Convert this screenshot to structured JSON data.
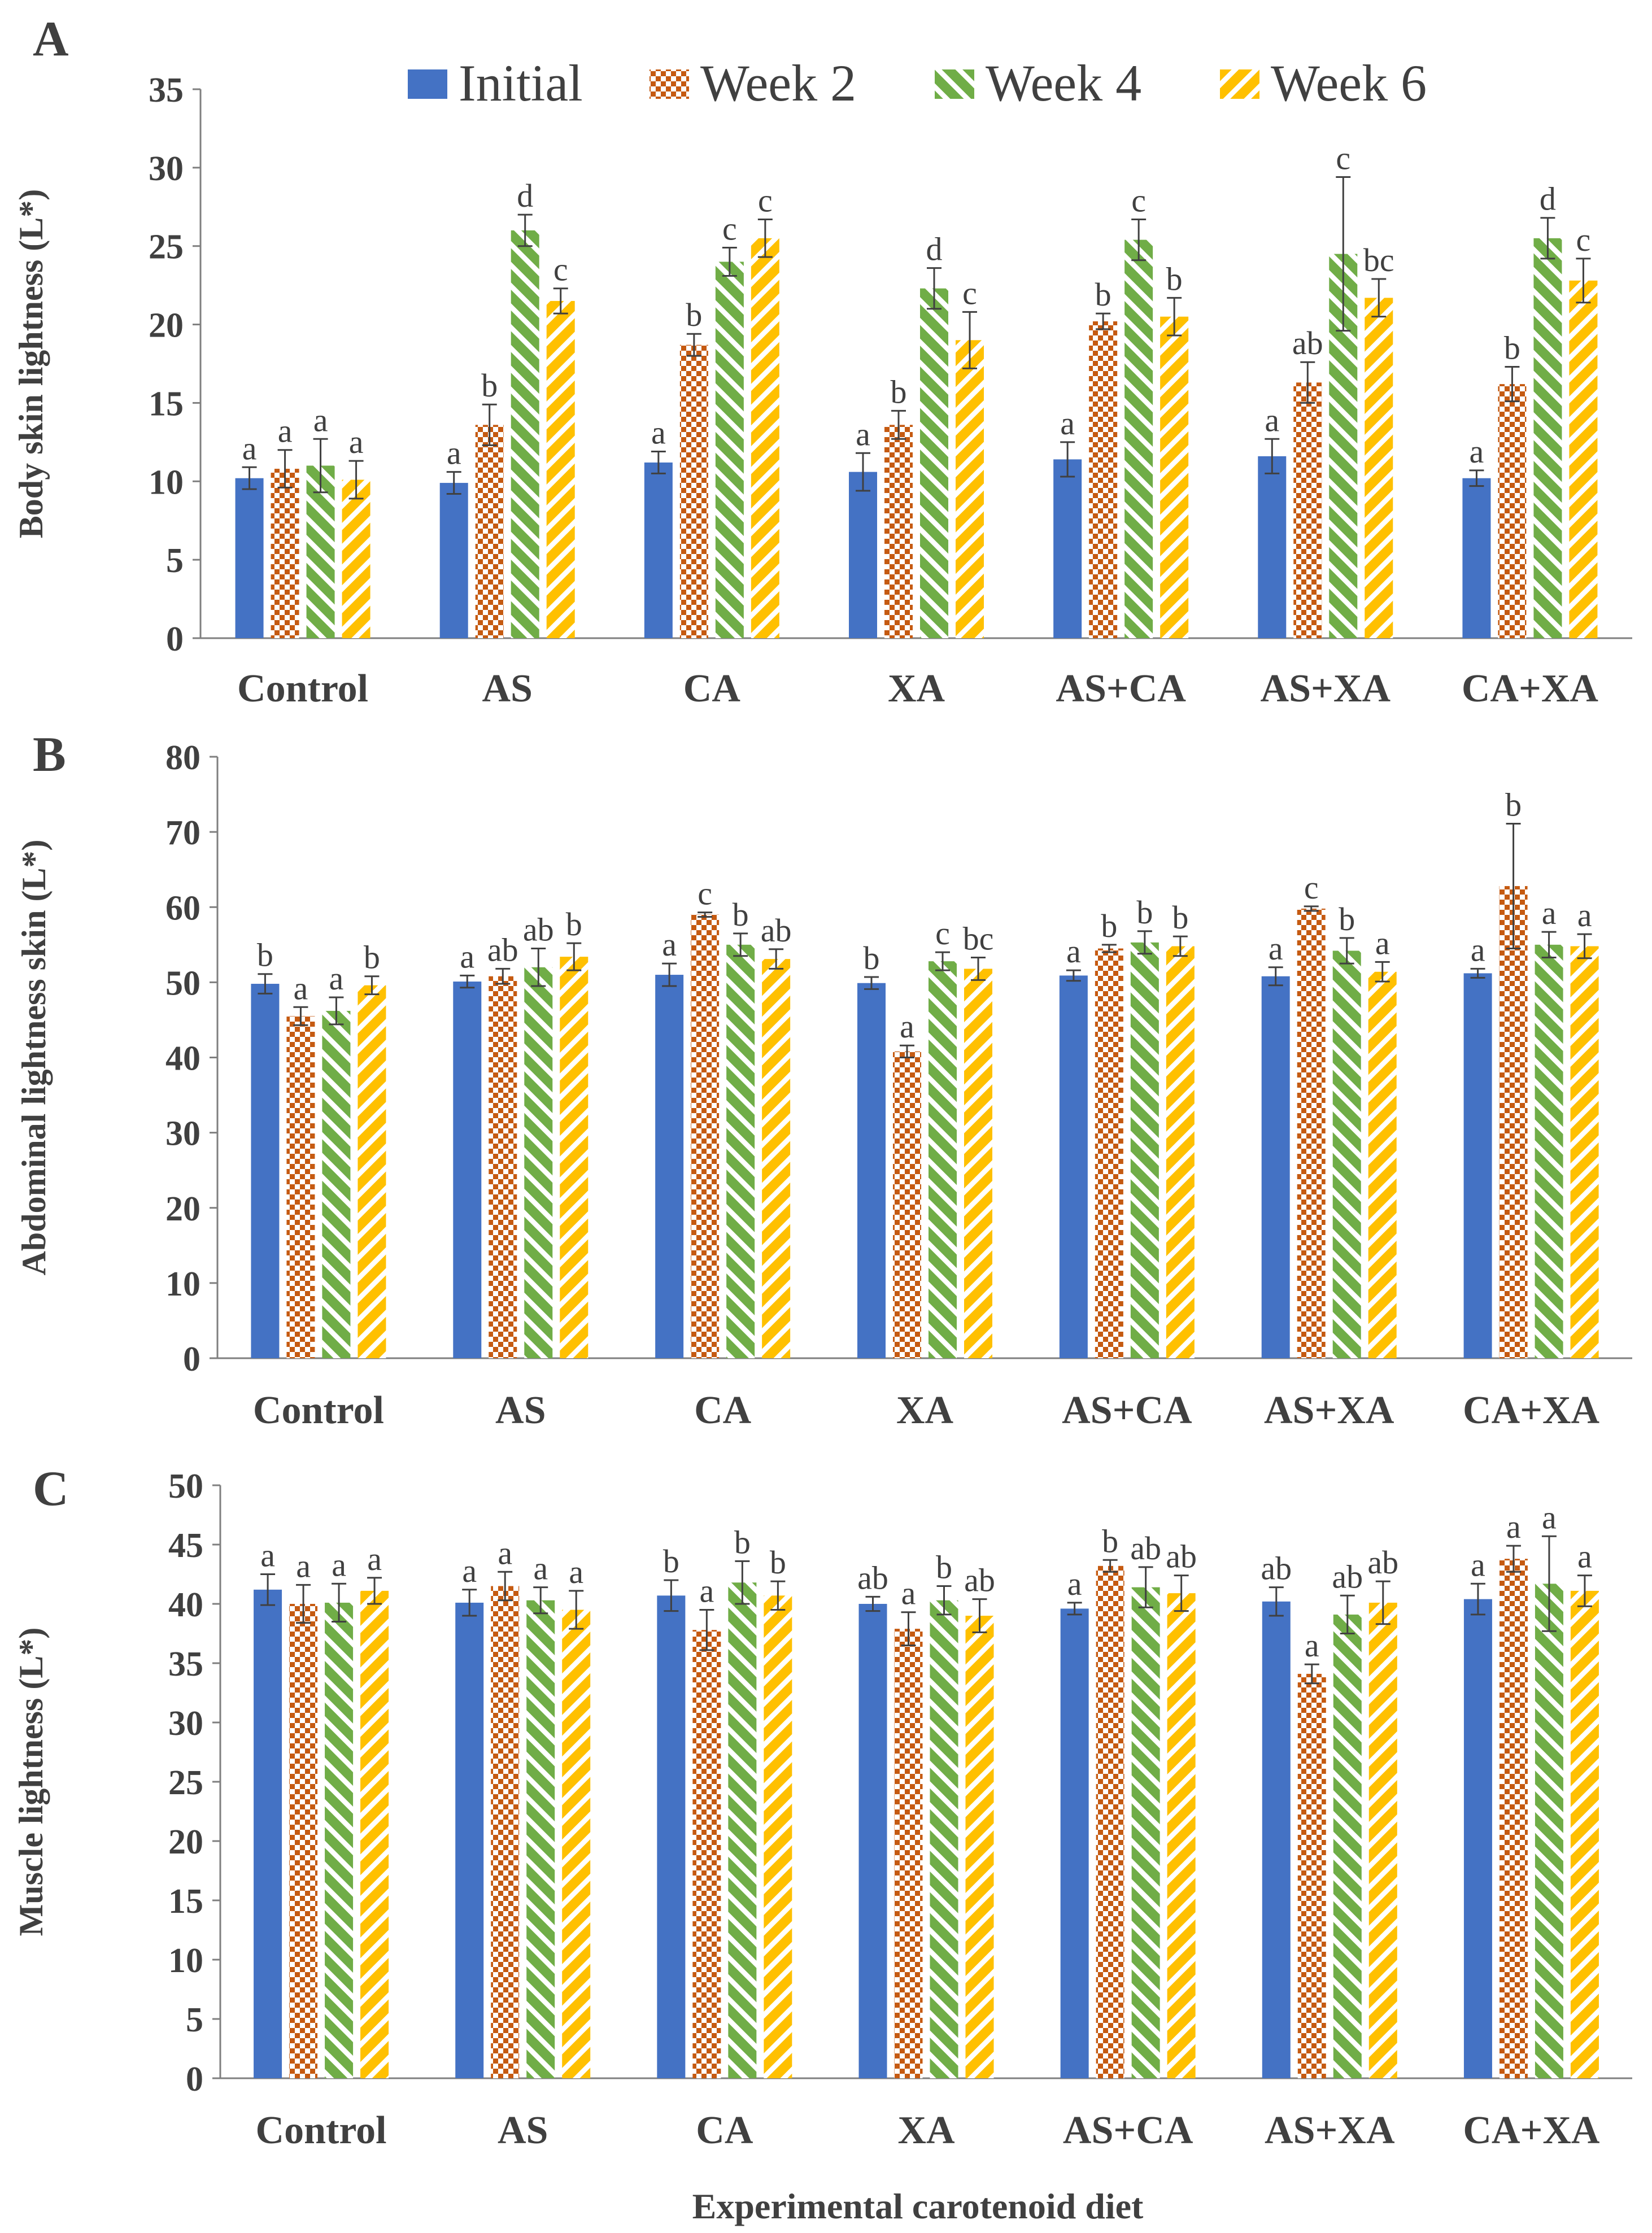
{
  "figure": {
    "xlabel": "Experimental carotenoid diet"
  },
  "legend": [
    {
      "name": "Initial",
      "color": "#4472C4",
      "pattern": "solid"
    },
    {
      "name": "Week 2",
      "color": "#C55A11",
      "pattern": "checker"
    },
    {
      "name": "Week 4",
      "color": "#70AD47",
      "pattern": "diag-right"
    },
    {
      "name": "Week 6",
      "color": "#FFC000",
      "pattern": "diag-left"
    }
  ],
  "chart_data": [
    {
      "panel": "A",
      "type": "bar",
      "ylabel": "Body skin lightness (L*)",
      "ylim": [
        0,
        35
      ],
      "yticks": [
        0,
        5,
        10,
        15,
        20,
        25,
        30,
        35
      ],
      "categories": [
        "Control",
        "AS",
        "CA",
        "XA",
        "AS+CA",
        "AS+XA",
        "CA+XA"
      ],
      "series": [
        {
          "name": "Initial",
          "values": [
            10.2,
            9.9,
            11.2,
            10.6,
            11.4,
            11.6,
            10.2
          ],
          "errors": [
            0.7,
            0.7,
            0.7,
            1.2,
            1.1,
            1.1,
            0.5
          ],
          "labels": [
            "a",
            "a",
            "a",
            "a",
            "a",
            "a",
            "a"
          ]
        },
        {
          "name": "Week 2",
          "values": [
            10.8,
            13.6,
            18.7,
            13.6,
            20.2,
            16.3,
            16.2
          ],
          "errors": [
            1.2,
            1.3,
            0.7,
            0.9,
            0.5,
            1.3,
            1.1
          ],
          "labels": [
            "a",
            "b",
            "b",
            "b",
            "b",
            "ab",
            "b"
          ]
        },
        {
          "name": "Week 4",
          "values": [
            11.0,
            26.0,
            24.0,
            22.3,
            25.4,
            24.5,
            25.5
          ],
          "errors": [
            1.7,
            1.0,
            0.9,
            1.3,
            1.3,
            4.9,
            1.3
          ],
          "labels": [
            "a",
            "d",
            "c",
            "d",
            "c",
            "c",
            "d"
          ]
        },
        {
          "name": "Week 6",
          "values": [
            10.1,
            21.5,
            25.5,
            19.0,
            20.5,
            21.7,
            22.8
          ],
          "errors": [
            1.2,
            0.8,
            1.2,
            1.8,
            1.2,
            1.2,
            1.4
          ],
          "labels": [
            "a",
            "c",
            "c",
            "c",
            "b",
            "bc",
            "c"
          ]
        }
      ]
    },
    {
      "panel": "B",
      "type": "bar",
      "ylabel": "Abdominal lightness skin (L*)",
      "ylim": [
        0,
        80
      ],
      "yticks": [
        0,
        10,
        20,
        30,
        40,
        50,
        60,
        70,
        80
      ],
      "categories": [
        "Control",
        "AS",
        "CA",
        "XA",
        "AS+CA",
        "AS+XA",
        "CA+XA"
      ],
      "series": [
        {
          "name": "Initial",
          "values": [
            49.8,
            50.1,
            51.0,
            49.9,
            50.9,
            50.8,
            51.2
          ],
          "errors": [
            1.3,
            0.8,
            1.5,
            0.8,
            0.7,
            1.2,
            0.6
          ],
          "labels": [
            "b",
            "a",
            "a",
            "b",
            "a",
            "a",
            "a"
          ]
        },
        {
          "name": "Week 2",
          "values": [
            45.5,
            50.8,
            59.0,
            40.8,
            54.5,
            59.8,
            62.8
          ],
          "errors": [
            1.2,
            1.0,
            0.3,
            0.8,
            0.5,
            0.3,
            8.3
          ],
          "labels": [
            "a",
            "ab",
            "c",
            "a",
            "b",
            "c",
            "b"
          ]
        },
        {
          "name": "Week 4",
          "values": [
            46.2,
            52.0,
            55.0,
            52.8,
            55.3,
            54.2,
            55.0
          ],
          "errors": [
            1.8,
            2.5,
            1.5,
            1.2,
            1.5,
            1.7,
            1.7
          ],
          "labels": [
            "a",
            "ab",
            "b",
            "c",
            "b",
            "b",
            "a"
          ]
        },
        {
          "name": "Week 6",
          "values": [
            49.6,
            53.4,
            53.1,
            51.8,
            54.8,
            51.4,
            54.8
          ],
          "errors": [
            1.2,
            1.8,
            1.3,
            1.5,
            1.3,
            1.3,
            1.6
          ],
          "labels": [
            "b",
            "b",
            "ab",
            "bc",
            "b",
            "a",
            "a"
          ]
        }
      ]
    },
    {
      "panel": "C",
      "type": "bar",
      "ylabel": "Muscle lightness (L*)",
      "ylim": [
        0,
        50
      ],
      "yticks": [
        0,
        5,
        10,
        15,
        20,
        25,
        30,
        35,
        40,
        45,
        50
      ],
      "categories": [
        "Control",
        "AS",
        "CA",
        "XA",
        "AS+CA",
        "AS+XA",
        "CA+XA"
      ],
      "series": [
        {
          "name": "Initial",
          "values": [
            41.2,
            40.1,
            40.7,
            40.0,
            39.6,
            40.2,
            40.4
          ],
          "errors": [
            1.3,
            1.1,
            1.3,
            0.6,
            0.5,
            1.2,
            1.3
          ],
          "labels": [
            "a",
            "a",
            "b",
            "ab",
            "a",
            "ab",
            "a"
          ]
        },
        {
          "name": "Week 2",
          "values": [
            40.0,
            41.5,
            37.8,
            37.9,
            43.2,
            34.1,
            43.8
          ],
          "errors": [
            1.6,
            1.2,
            1.7,
            1.4,
            0.5,
            0.8,
            1.1
          ],
          "labels": [
            "a",
            "a",
            "a",
            "a",
            "b",
            "a",
            "a"
          ]
        },
        {
          "name": "Week 4",
          "values": [
            40.1,
            40.3,
            41.8,
            40.3,
            41.4,
            39.1,
            41.7
          ],
          "errors": [
            1.6,
            1.1,
            1.8,
            1.2,
            1.7,
            1.6,
            4.0
          ],
          "labels": [
            "a",
            "a",
            "b",
            "b",
            "ab",
            "ab",
            "a"
          ]
        },
        {
          "name": "Week 6",
          "values": [
            41.1,
            39.5,
            40.7,
            39.0,
            40.9,
            40.1,
            41.1
          ],
          "errors": [
            1.1,
            1.6,
            1.2,
            1.4,
            1.5,
            1.8,
            1.3
          ],
          "labels": [
            "a",
            "a",
            "b",
            "ab",
            "ab",
            "ab",
            "a"
          ]
        }
      ]
    }
  ]
}
